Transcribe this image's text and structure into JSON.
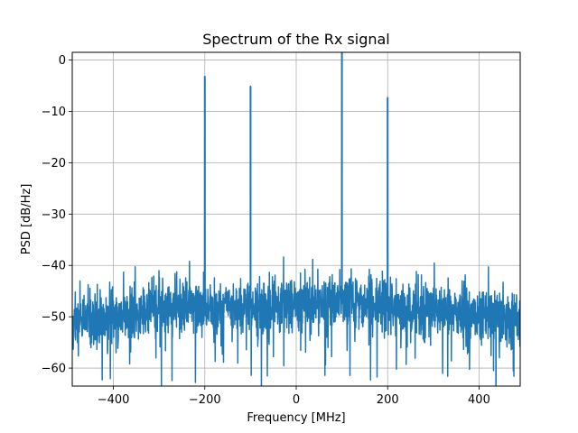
{
  "chart_data": {
    "type": "line",
    "title": "Spectrum of the Rx signal",
    "xlabel": "Frequency [MHz]",
    "ylabel": "PSD [dB/Hz]",
    "xlim": [
      -490,
      490
    ],
    "ylim": [
      -63.5,
      1.5
    ],
    "xticks": [
      -400,
      -200,
      0,
      200,
      400
    ],
    "xtick_labels": [
      "−400",
      "−200",
      "0",
      "200",
      "400"
    ],
    "yticks": [
      0,
      -10,
      -20,
      -30,
      -40,
      -50,
      -60
    ],
    "ytick_labels": [
      "0",
      "−10",
      "−20",
      "−30",
      "−40",
      "−50",
      "−60"
    ],
    "grid": true,
    "color": "#1f77b4",
    "series": [
      {
        "noise_floor_envelope": {
          "x": [
            -490,
            -400,
            -300,
            -200,
            -100,
            0,
            100,
            200,
            300,
            400,
            490
          ],
          "y": [
            -51,
            -50,
            -48.5,
            -48.5,
            -48,
            -47.5,
            -47.5,
            -48,
            -48.5,
            -50,
            -51
          ]
        },
        "peaks": {
          "x": [
            -200,
            -100,
            100,
            200
          ],
          "y": [
            -3.2,
            -5.1,
            1.5,
            -7.3
          ]
        }
      }
    ]
  }
}
